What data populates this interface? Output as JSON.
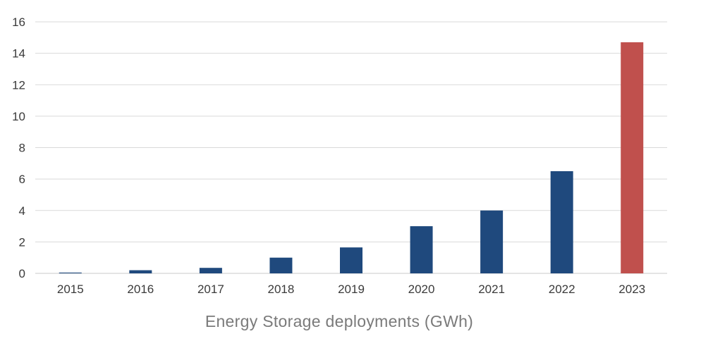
{
  "chart_data": {
    "type": "bar",
    "title": "",
    "xlabel": "Energy Storage deployments (GWh)",
    "ylabel": "",
    "categories": [
      "2015",
      "2016",
      "2017",
      "2018",
      "2019",
      "2020",
      "2021",
      "2022",
      "2023"
    ],
    "values": [
      0.05,
      0.2,
      0.35,
      1.0,
      1.65,
      3.0,
      4.0,
      6.5,
      14.7
    ],
    "ylim": [
      0,
      16
    ],
    "yticks": [
      0,
      2,
      4,
      6,
      8,
      10,
      12,
      14,
      16
    ],
    "ytick_labels": [
      "0",
      "2",
      "4",
      "6",
      "8",
      "10",
      "12",
      "14",
      "16"
    ],
    "grid": true,
    "legend": "none",
    "colors": {
      "default_bar": "#1f497d",
      "highlight_bar": "#c0504d",
      "highlight_category": "2023",
      "gridline": "#d9d9d9"
    }
  }
}
